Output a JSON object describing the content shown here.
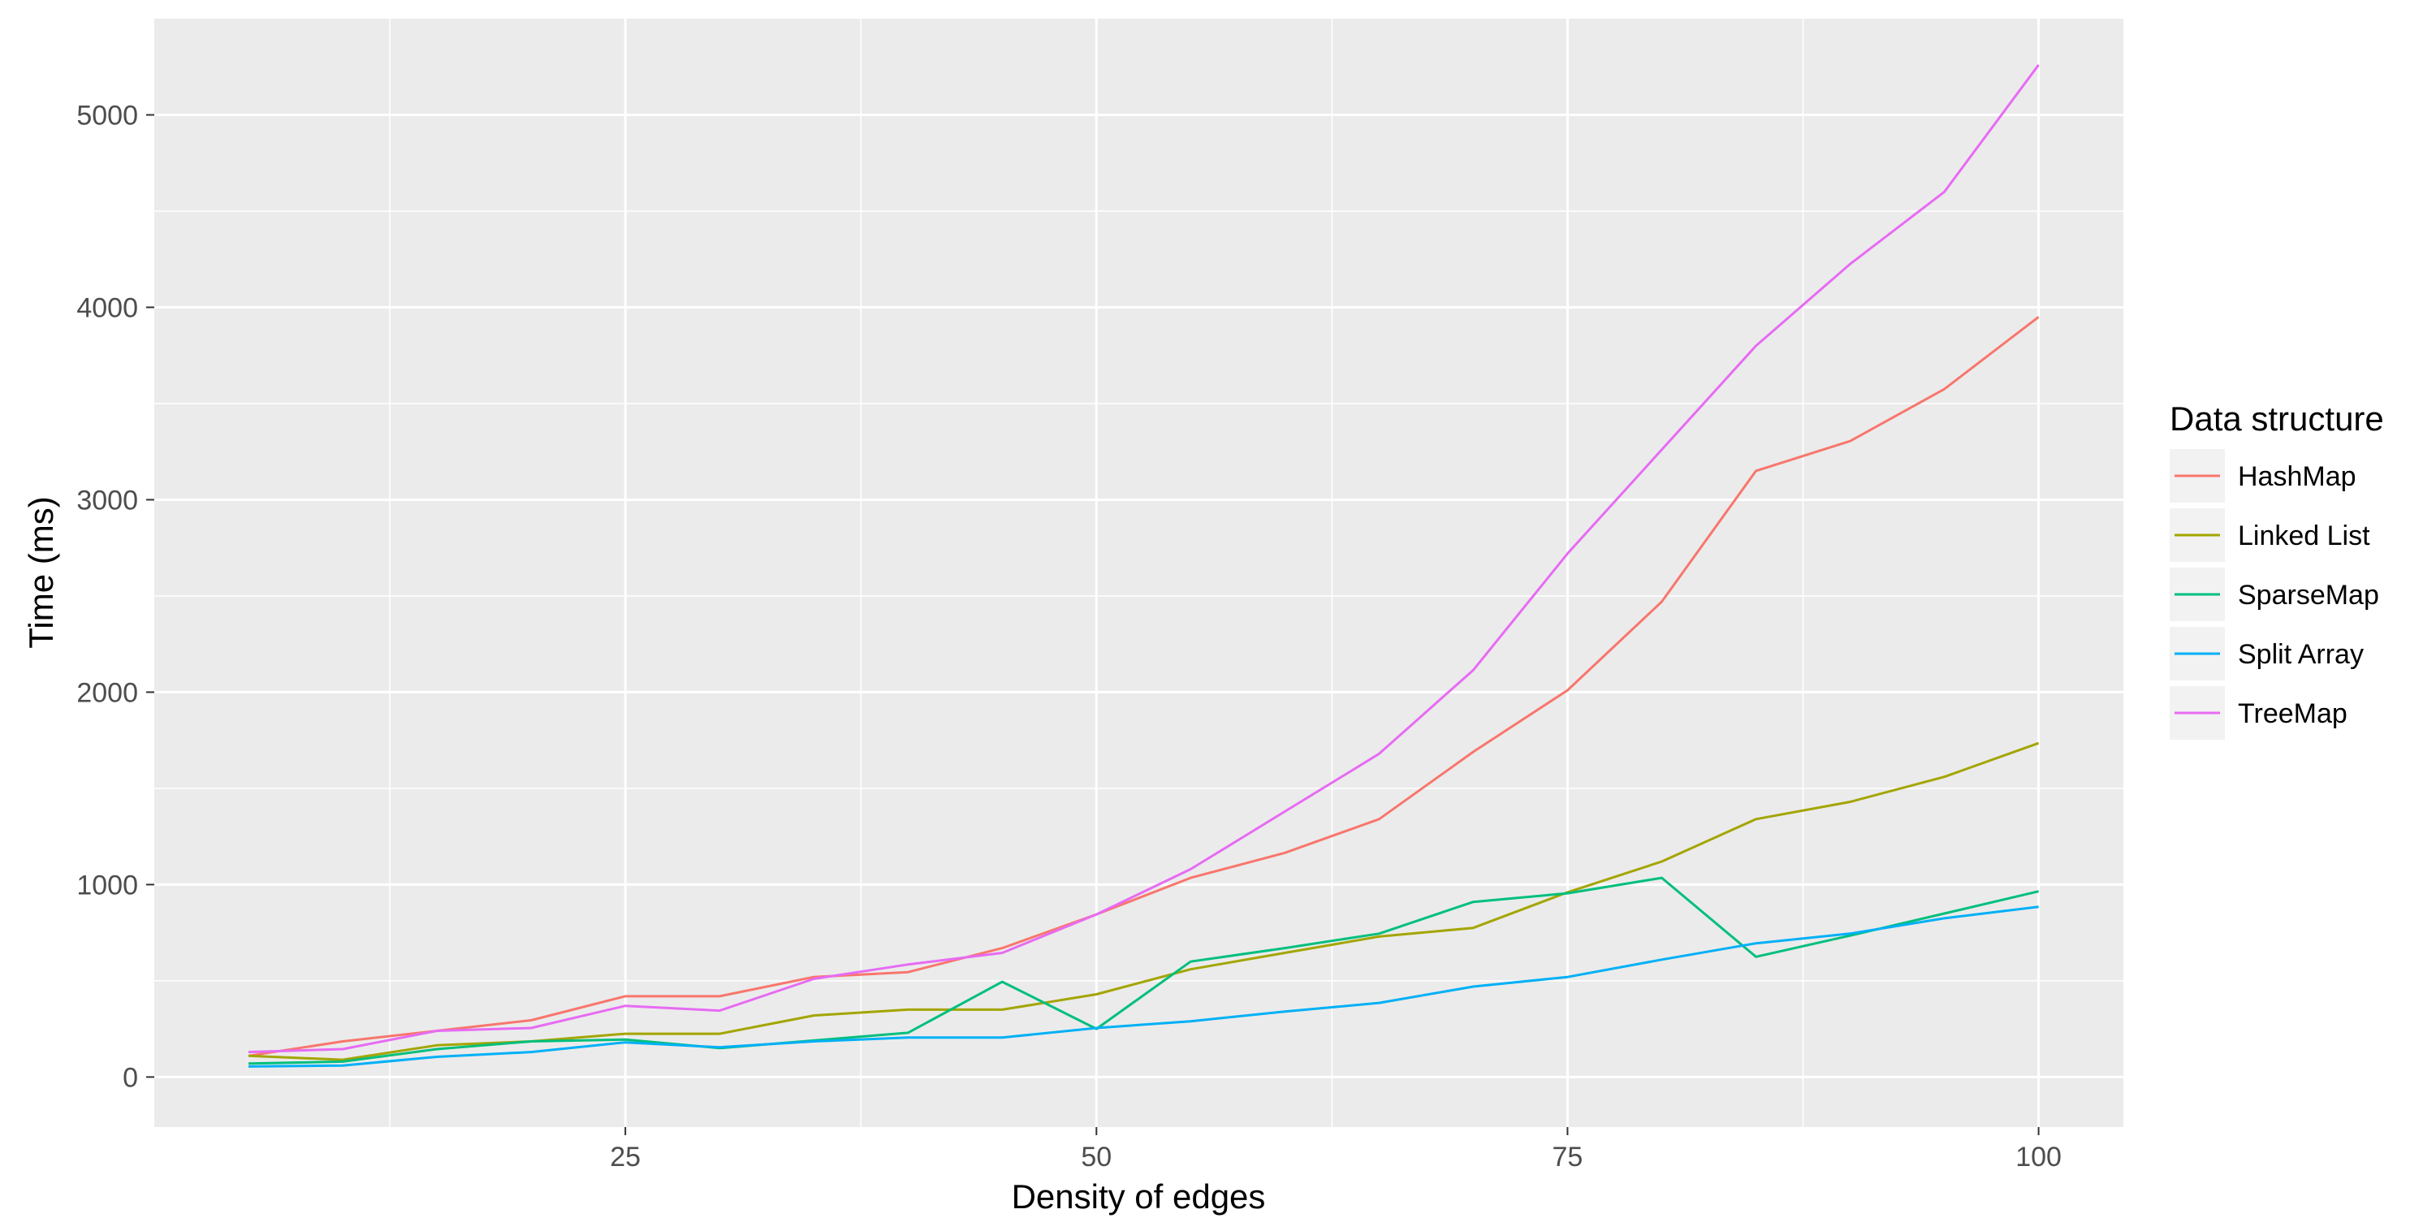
{
  "chart_data": {
    "type": "line",
    "xlabel": "Density of edges",
    "ylabel": "Time (ms)",
    "xlim": [
      0,
      104.5
    ],
    "ylim": [
      -260,
      5500
    ],
    "x_ticks": [
      25,
      50,
      75,
      100
    ],
    "y_ticks": [
      0,
      1000,
      2000,
      3000,
      4000,
      5000
    ],
    "grid": true,
    "legend_title": "Data structure",
    "legend_position": "right",
    "x": [
      5,
      10,
      15,
      20,
      25,
      30,
      35,
      40,
      45,
      50,
      55,
      60,
      65,
      70,
      75,
      80,
      85,
      90,
      95,
      100
    ],
    "series": [
      {
        "name": "HashMap",
        "color": "#F8766D",
        "values": [
          110,
          185,
          240,
          295,
          420,
          420,
          520,
          545,
          670,
          845,
          1035,
          1165,
          1340,
          1690,
          2010,
          2470,
          3150,
          3305,
          3575,
          3950
        ]
      },
      {
        "name": "Linked List",
        "color": "#A3A500",
        "values": [
          110,
          90,
          165,
          185,
          225,
          225,
          320,
          350,
          350,
          430,
          560,
          645,
          730,
          775,
          960,
          1120,
          1340,
          1430,
          1560,
          1735
        ]
      },
      {
        "name": "SparseMap",
        "color": "#00BF7D",
        "values": [
          70,
          80,
          145,
          185,
          195,
          150,
          190,
          230,
          495,
          250,
          600,
          670,
          745,
          910,
          955,
          1035,
          625,
          735,
          850,
          965
        ]
      },
      {
        "name": "Split Array",
        "color": "#00B0F6",
        "values": [
          55,
          60,
          105,
          130,
          180,
          155,
          185,
          205,
          205,
          255,
          290,
          340,
          385,
          470,
          520,
          610,
          695,
          745,
          825,
          885
        ]
      },
      {
        "name": "TreeMap",
        "color": "#E76BF3",
        "values": [
          130,
          145,
          240,
          255,
          370,
          345,
          510,
          585,
          645,
          845,
          1080,
          1380,
          1680,
          2115,
          2720,
          3260,
          3800,
          4225,
          4600,
          5260
        ]
      }
    ]
  }
}
